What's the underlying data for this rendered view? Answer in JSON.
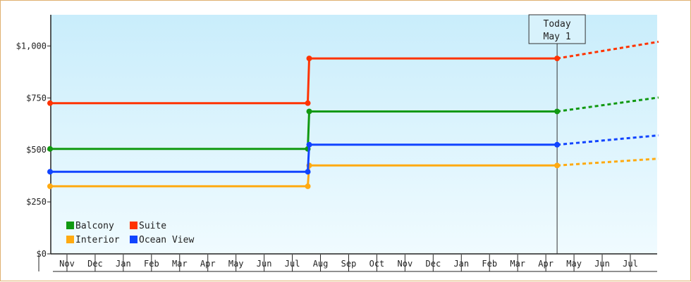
{
  "chart_data": {
    "type": "line",
    "line_style": "step",
    "x_categories": [
      "Nov",
      "Dec",
      "Jan",
      "Feb",
      "Mar",
      "Apr",
      "May",
      "Jun",
      "Jul",
      "Aug",
      "Sep",
      "Oct",
      "Nov",
      "Dec",
      "Jan",
      "Feb",
      "Mar",
      "Apr",
      "May",
      "Jun",
      "Jul"
    ],
    "y_ticks": [
      "$0",
      "$250",
      "$500",
      "$750",
      "$1,000"
    ],
    "ylim": [
      0,
      1150
    ],
    "today_marker": {
      "line1": "Today",
      "line2": "May 1",
      "x": 18
    },
    "legend": {
      "placement": "bottom-left"
    },
    "background_gradient": [
      "#c9edfb",
      "#f0fbff"
    ],
    "series": [
      {
        "name": "Balcony",
        "color": "#119911",
        "points": [
          {
            "x": 0,
            "y": 505
          },
          {
            "x": 9.15,
            "y": 505
          },
          {
            "x": 9.2,
            "y": 685
          },
          {
            "x": 18,
            "y": 685
          }
        ],
        "projection": [
          {
            "x": 18,
            "y": 685
          },
          {
            "x": 21.6,
            "y": 752
          }
        ]
      },
      {
        "name": "Suite",
        "color": "#ff3300",
        "points": [
          {
            "x": 0,
            "y": 725
          },
          {
            "x": 9.15,
            "y": 725
          },
          {
            "x": 9.2,
            "y": 940
          },
          {
            "x": 18,
            "y": 940
          }
        ],
        "projection": [
          {
            "x": 18,
            "y": 940
          },
          {
            "x": 21.6,
            "y": 1020
          }
        ]
      },
      {
        "name": "Interior",
        "color": "#ffaa11",
        "points": [
          {
            "x": 0,
            "y": 325
          },
          {
            "x": 9.15,
            "y": 325
          },
          {
            "x": 9.2,
            "y": 425
          },
          {
            "x": 18,
            "y": 425
          }
        ],
        "projection": [
          {
            "x": 18,
            "y": 425
          },
          {
            "x": 21.6,
            "y": 458
          }
        ]
      },
      {
        "name": "Ocean View",
        "color": "#1144ff",
        "points": [
          {
            "x": 0,
            "y": 395
          },
          {
            "x": 9.15,
            "y": 395
          },
          {
            "x": 9.2,
            "y": 525
          },
          {
            "x": 18,
            "y": 525
          }
        ],
        "projection": [
          {
            "x": 18,
            "y": 525
          },
          {
            "x": 21.6,
            "y": 570
          }
        ]
      }
    ]
  }
}
